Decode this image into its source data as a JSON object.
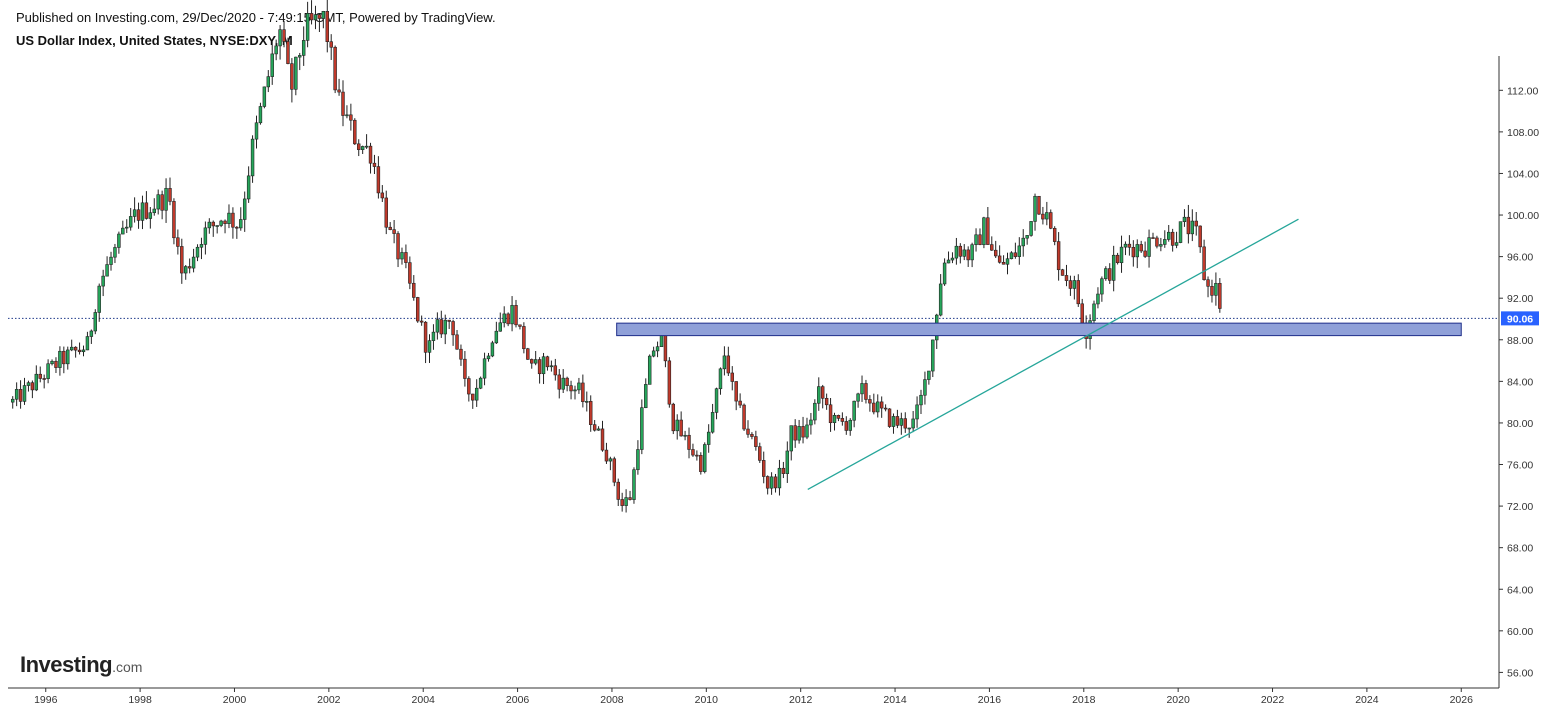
{
  "header": {
    "published": "Published on Investing.com, 29/Dec/2020 - 7:49:15 GMT, Powered by TradingView.",
    "title": "US Dollar Index, United States, NYSE:DXY, M"
  },
  "logo": {
    "main": "Investing",
    "suffix": ".com"
  },
  "price_label": {
    "value": "90.06",
    "color": "#2962ff"
  },
  "colors": {
    "up": "#26a65b",
    "down": "#c0392b",
    "zone_fill": "#8fa0d8",
    "zone_stroke": "#1f2f8a",
    "trendline": "#26a69a",
    "grid": "#000000"
  },
  "chart_data": {
    "type": "candlestick",
    "title": "US Dollar Index, United States, NYSE:DXY, M",
    "x_ticks": [
      "1996",
      "1998",
      "2000",
      "2002",
      "2004",
      "2006",
      "2008",
      "2010",
      "2012",
      "2014",
      "2016",
      "2018",
      "2020",
      "2022",
      "2024",
      "2026"
    ],
    "y_ticks": [
      "56.00",
      "60.00",
      "64.00",
      "68.00",
      "72.00",
      "76.00",
      "80.00",
      "84.00",
      "88.00",
      "92.00",
      "96.00",
      "100.00",
      "104.00",
      "108.00",
      "112.00"
    ],
    "xlim": [
      1995.2,
      2026.8
    ],
    "ylim": [
      54.5,
      115.3
    ],
    "last_price": 90.06,
    "anchors": [
      [
        1995.3,
        82
      ],
      [
        1996.3,
        86
      ],
      [
        1996.9,
        87.5
      ],
      [
        1997.1,
        93
      ],
      [
        1997.4,
        96
      ],
      [
        1997.9,
        100
      ],
      [
        1998.3,
        101
      ],
      [
        1998.6,
        102
      ],
      [
        1998.9,
        94
      ],
      [
        1999.3,
        98
      ],
      [
        1999.8,
        100
      ],
      [
        2000.1,
        99
      ],
      [
        2000.4,
        107
      ],
      [
        2000.7,
        113
      ],
      [
        2000.95,
        118
      ],
      [
        2001.2,
        112
      ],
      [
        2001.5,
        118
      ],
      [
        2001.9,
        119
      ],
      [
        2002.2,
        111
      ],
      [
        2002.6,
        107
      ],
      [
        2002.9,
        106
      ],
      [
        2003.3,
        98
      ],
      [
        2003.6,
        95
      ],
      [
        2003.9,
        90
      ],
      [
        2004.1,
        87
      ],
      [
        2004.3,
        89
      ],
      [
        2004.6,
        90
      ],
      [
        2004.9,
        83
      ],
      [
        2005.1,
        83
      ],
      [
        2005.5,
        89
      ],
      [
        2005.9,
        91
      ],
      [
        2006.3,
        85
      ],
      [
        2006.6,
        86
      ],
      [
        2006.9,
        84
      ],
      [
        2007.3,
        83
      ],
      [
        2007.6,
        80
      ],
      [
        2007.9,
        77
      ],
      [
        2008.2,
        72
      ],
      [
        2008.4,
        73
      ],
      [
        2008.6,
        80
      ],
      [
        2008.85,
        87
      ],
      [
        2009.05,
        88
      ],
      [
        2009.3,
        80
      ],
      [
        2009.6,
        78
      ],
      [
        2009.9,
        76
      ],
      [
        2010.1,
        80
      ],
      [
        2010.4,
        87
      ],
      [
        2010.6,
        82
      ],
      [
        2010.9,
        79
      ],
      [
        2011.1,
        77
      ],
      [
        2011.3,
        74
      ],
      [
        2011.6,
        75
      ],
      [
        2011.8,
        79
      ],
      [
        2012.1,
        79
      ],
      [
        2012.4,
        83
      ],
      [
        2012.7,
        80
      ],
      [
        2013.0,
        80
      ],
      [
        2013.3,
        83
      ],
      [
        2013.7,
        81
      ],
      [
        2014.0,
        80
      ],
      [
        2014.4,
        80
      ],
      [
        2014.6,
        83
      ],
      [
        2014.8,
        88
      ],
      [
        2015.0,
        95
      ],
      [
        2015.3,
        97
      ],
      [
        2015.6,
        96
      ],
      [
        2015.9,
        99
      ],
      [
        2016.2,
        95
      ],
      [
        2016.5,
        96
      ],
      [
        2016.8,
        98
      ],
      [
        2016.95,
        102
      ],
      [
        2017.2,
        100
      ],
      [
        2017.5,
        95
      ],
      [
        2017.8,
        93
      ],
      [
        2018.05,
        89
      ],
      [
        2018.3,
        93
      ],
      [
        2018.6,
        95
      ],
      [
        2018.9,
        97
      ],
      [
        2019.3,
        97
      ],
      [
        2019.6,
        98
      ],
      [
        2019.9,
        98
      ],
      [
        2020.15,
        99
      ],
      [
        2020.4,
        98
      ],
      [
        2020.6,
        93
      ],
      [
        2020.8,
        93
      ],
      [
        2020.95,
        90.06
      ]
    ],
    "zone": {
      "x_start": 2008.1,
      "x_end": 2026.0,
      "y_low": 88.4,
      "y_high": 89.6
    },
    "trendline": {
      "x1": 2012.15,
      "y1": 73.6,
      "x2": 2022.55,
      "y2": 99.6
    },
    "horizontal_line": 90.06
  }
}
